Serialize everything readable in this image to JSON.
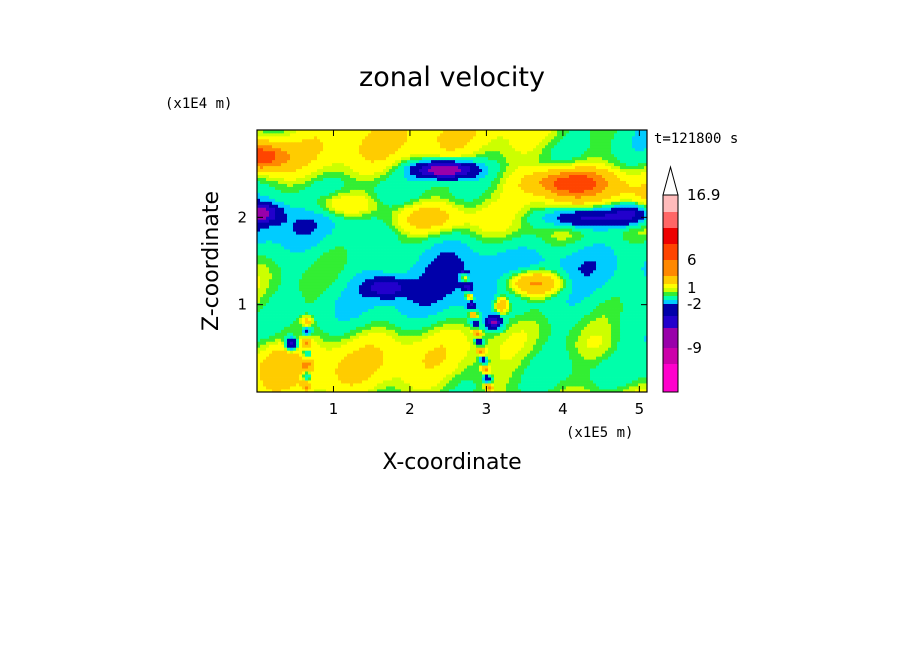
{
  "chart_data": {
    "type": "heatmap",
    "title": "zonal velocity",
    "xlabel": "X-coordinate",
    "ylabel": "Z-coordinate",
    "x_scale_label": "(x1E5 m)",
    "y_scale_label": "(x1E4 m)",
    "time_label": "t=121800 s",
    "xlim": [
      0,
      5.1
    ],
    "ylim": [
      0,
      3.0
    ],
    "x_ticks": [
      "1",
      "2",
      "3",
      "4",
      "5"
    ],
    "x_tick_values": [
      1,
      2,
      3,
      4,
      5
    ],
    "y_ticks": [
      "1",
      "2"
    ],
    "y_tick_values": [
      1,
      2
    ],
    "colorbar": {
      "labels": [
        "16.9",
        "6",
        "1",
        "-2",
        "-9"
      ],
      "extend": "max",
      "bins": [
        {
          "lo": -15,
          "hi": -12,
          "color": "#ff00cc"
        },
        {
          "lo": -12,
          "hi": -9,
          "color": "#cc00aa"
        },
        {
          "lo": -9,
          "hi": -6,
          "color": "#9900aa"
        },
        {
          "lo": -6,
          "hi": -4,
          "color": "#2200cc"
        },
        {
          "lo": -4,
          "hi": -2,
          "color": "#0000aa"
        },
        {
          "lo": -2,
          "hi": -1,
          "color": "#00ccff"
        },
        {
          "lo": -1,
          "hi": 0,
          "color": "#00ffaa"
        },
        {
          "lo": 0,
          "hi": 0.5,
          "color": "#33ee33"
        },
        {
          "lo": 0.5,
          "hi": 1,
          "color": "#ccff00"
        },
        {
          "lo": 1,
          "hi": 2,
          "color": "#ffff00"
        },
        {
          "lo": 2,
          "hi": 4,
          "color": "#ffcc00"
        },
        {
          "lo": 4,
          "hi": 6,
          "color": "#ff8800"
        },
        {
          "lo": 6,
          "hi": 9,
          "color": "#ff4400"
        },
        {
          "lo": 9,
          "hi": 12,
          "color": "#ee0000"
        },
        {
          "lo": 12,
          "hi": 14.5,
          "color": "#ff6666"
        },
        {
          "lo": 14.5,
          "hi": 16.9,
          "color": "#ffbbbb"
        }
      ]
    }
  }
}
